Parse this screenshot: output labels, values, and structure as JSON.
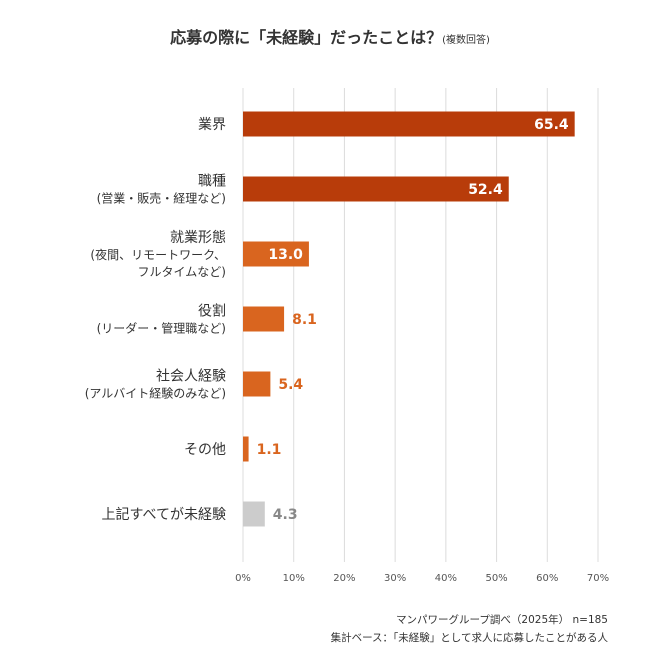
{
  "title": {
    "main": "応募の際に「未経験」だったことは？",
    "note": "(複数回答)"
  },
  "footer": {
    "source": "マンパワーグループ調べ（2025年） n=185",
    "basis": "集計ベース：「未経験」として求人に応募したことがある人"
  },
  "colors": {
    "primary": "#b83c0a",
    "secondary": "#d9651f",
    "other": "#cccccc",
    "grid": "#dcdcdc",
    "text": "#333333",
    "value_light": "#ffffff",
    "value_other": "#888888"
  },
  "chart_data": {
    "type": "bar",
    "orientation": "horizontal",
    "unit": "%",
    "xlim": [
      0,
      70
    ],
    "xticks": [
      "0%",
      "10%",
      "20%",
      "30%",
      "40%",
      "50%",
      "60%",
      "70%"
    ],
    "grid": true,
    "categories": [
      {
        "label": [
          "業界"
        ],
        "value": 65.4,
        "value_label": "65.4",
        "color": "primary"
      },
      {
        "label": [
          "職種",
          "(営業・販売・経理など)"
        ],
        "value": 52.4,
        "value_label": "52.4",
        "color": "primary"
      },
      {
        "label": [
          "就業形態",
          "(夜間、リモートワーク、",
          "フルタイムなど)"
        ],
        "value": 13.0,
        "value_label": "13.0",
        "color": "secondary"
      },
      {
        "label": [
          "役割",
          "(リーダー・管理職など)"
        ],
        "value": 8.1,
        "value_label": "8.1",
        "color": "secondary"
      },
      {
        "label": [
          "社会人経験",
          "(アルバイト経験のみなど)"
        ],
        "value": 5.4,
        "value_label": "5.4",
        "color": "secondary"
      },
      {
        "label": [
          "その他"
        ],
        "value": 1.1,
        "value_label": "1.1",
        "color": "secondary"
      },
      {
        "label": [
          "上記すべてが未経験"
        ],
        "value": 4.3,
        "value_label": "4.3",
        "color": "other"
      }
    ]
  }
}
